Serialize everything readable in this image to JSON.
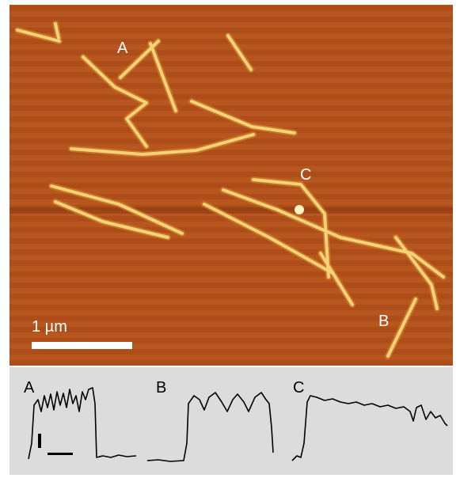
{
  "image": {
    "labels": [
      "A",
      "C",
      "B"
    ],
    "scale_bar": "1 µm"
  },
  "profiles": {
    "labels": [
      "A",
      "B",
      "C"
    ]
  }
}
